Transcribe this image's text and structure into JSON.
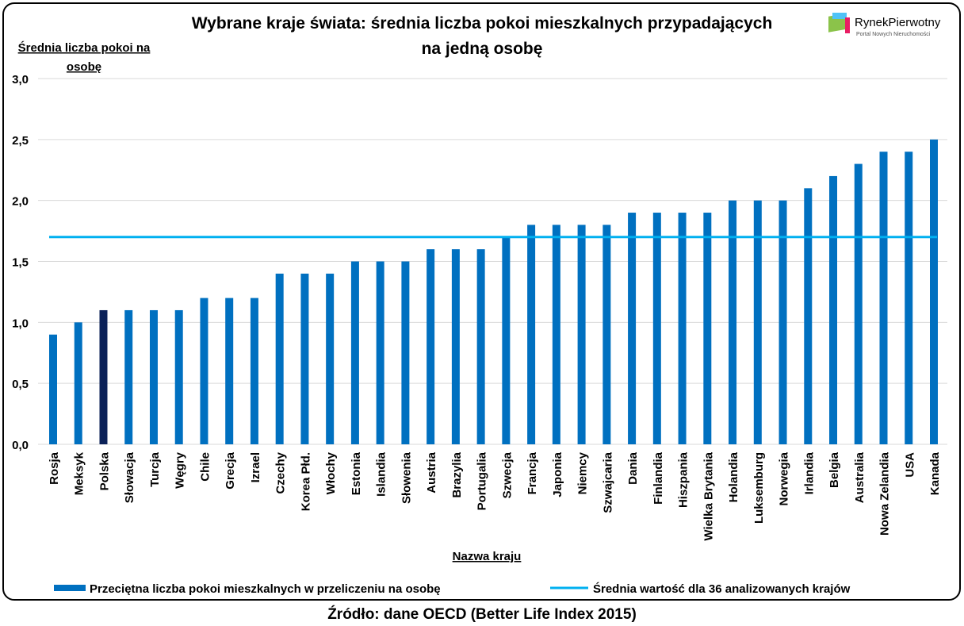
{
  "chart_data": {
    "type": "bar",
    "title_line1": "Wybrane kraje świata: średnia liczba pokoi mieszkalnych przypadających",
    "title_line2": "na jedną osobę",
    "ylabel_line1": "Średnia liczba pokoi na",
    "ylabel_line2": "osobę",
    "xlabel": "Nazwa kraju",
    "ylim": [
      0,
      3
    ],
    "yticks": [
      "0,0",
      "0,5",
      "1,0",
      "1,5",
      "2,0",
      "2,5",
      "3,0"
    ],
    "grid": true,
    "categories": [
      "Rosja",
      "Meksyk",
      "Polska",
      "Słowacja",
      "Turcja",
      "Węgry",
      "Chile",
      "Grecja",
      "Izrael",
      "Czechy",
      "Korea Płd.",
      "Włochy",
      "Estonia",
      "Islandia",
      "Słowenia",
      "Austria",
      "Brazylia",
      "Portugalia",
      "Szwecja",
      "Francja",
      "Japonia",
      "Niemcy",
      "Szwajcaria",
      "Dania",
      "Finlandia",
      "Hiszpania",
      "Wielka Brytania",
      "Holandia",
      "Luksemburg",
      "Norwegia",
      "Irlandia",
      "Belgia",
      "Australia",
      "Nowa Zelandia",
      "USA",
      "Kanada"
    ],
    "series": [
      {
        "name": "Przeciętna liczba pokoi mieszkalnych w przeliczeniu na osobę",
        "type": "bar",
        "color": "#0070C0",
        "highlight_color": "#0B2158",
        "highlight": "Polska",
        "values": [
          0.9,
          1.0,
          1.1,
          1.1,
          1.1,
          1.1,
          1.2,
          1.2,
          1.2,
          1.4,
          1.4,
          1.4,
          1.5,
          1.5,
          1.5,
          1.6,
          1.6,
          1.6,
          1.7,
          1.8,
          1.8,
          1.8,
          1.8,
          1.9,
          1.9,
          1.9,
          1.9,
          2.0,
          2.0,
          2.0,
          2.1,
          2.2,
          2.3,
          2.4,
          2.4,
          2.5
        ]
      },
      {
        "name": "Średnia wartość dla 36 analizowanych krajów",
        "type": "line",
        "color": "#00B0F0",
        "value": 1.7
      }
    ],
    "legend_position": "bottom",
    "source": "Źródło: dane OECD (Better Life Index 2015)"
  },
  "logo": {
    "name": "RynekPierwotny",
    "tagline": "Portal Nowych Nieruchomości"
  }
}
